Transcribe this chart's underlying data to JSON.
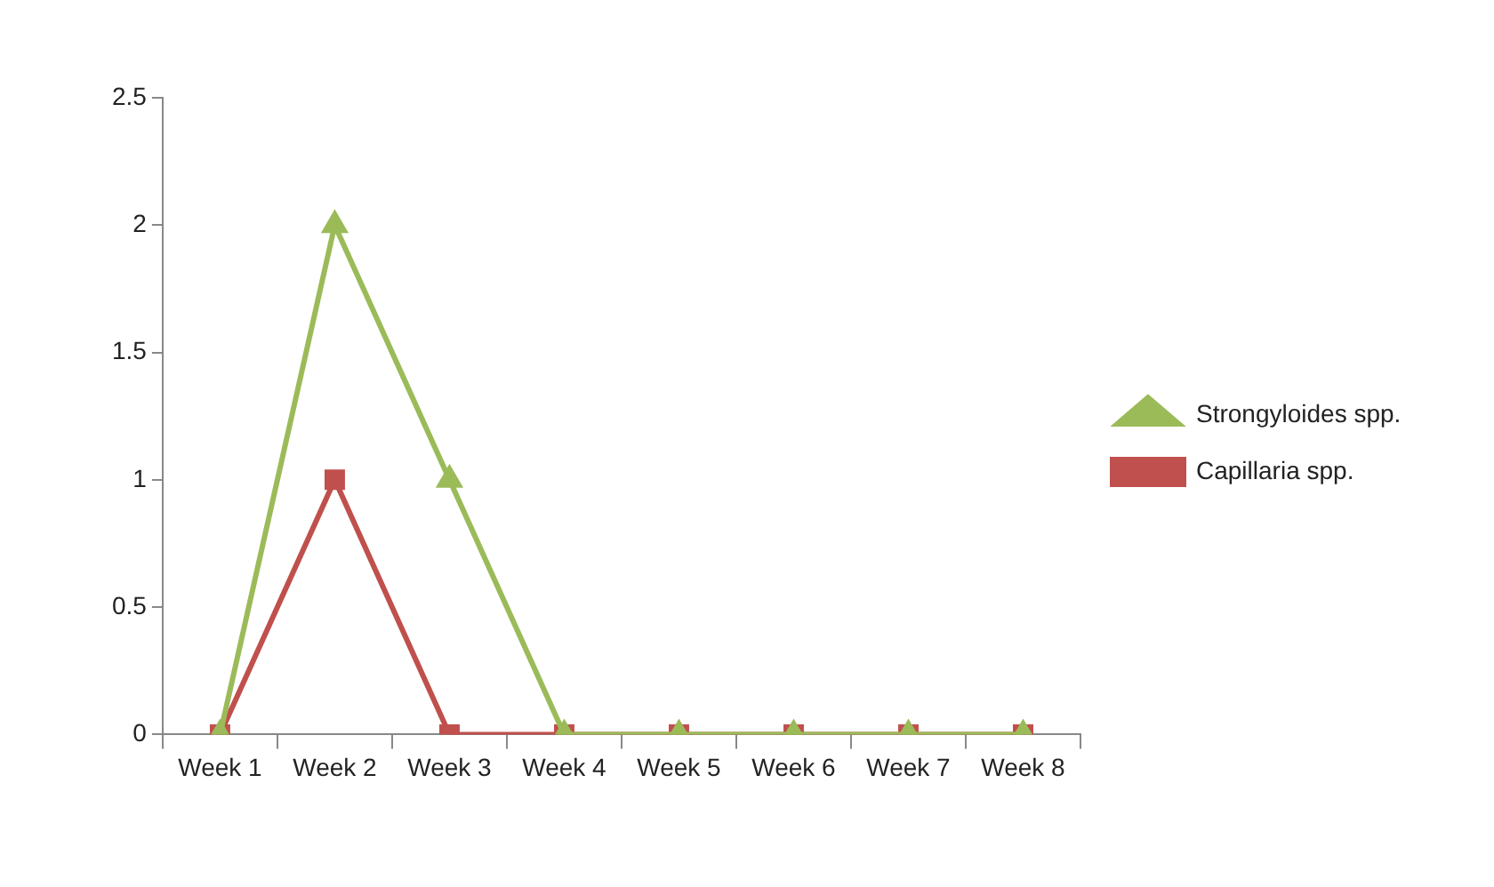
{
  "chart_data": {
    "type": "line",
    "categories": [
      "Week 1",
      "Week 2",
      "Week 3",
      "Week 4",
      "Week 5",
      "Week 6",
      "Week 7",
      "Week 8"
    ],
    "series": [
      {
        "name": "Capillaria spp.",
        "color": "#c0504d",
        "marker": "square",
        "values": [
          0,
          1,
          0,
          0,
          0,
          0,
          0,
          0
        ]
      },
      {
        "name": "Strongyloides spp.",
        "color": "#9bbb59",
        "marker": "triangle",
        "values": [
          0,
          2,
          1,
          0,
          0,
          0,
          0,
          0
        ]
      }
    ],
    "ylim": [
      0,
      2.5
    ],
    "yticks": [
      0,
      0.5,
      1,
      1.5,
      2,
      2.5
    ],
    "grid": false,
    "legend": "right",
    "line_style": "solid"
  }
}
